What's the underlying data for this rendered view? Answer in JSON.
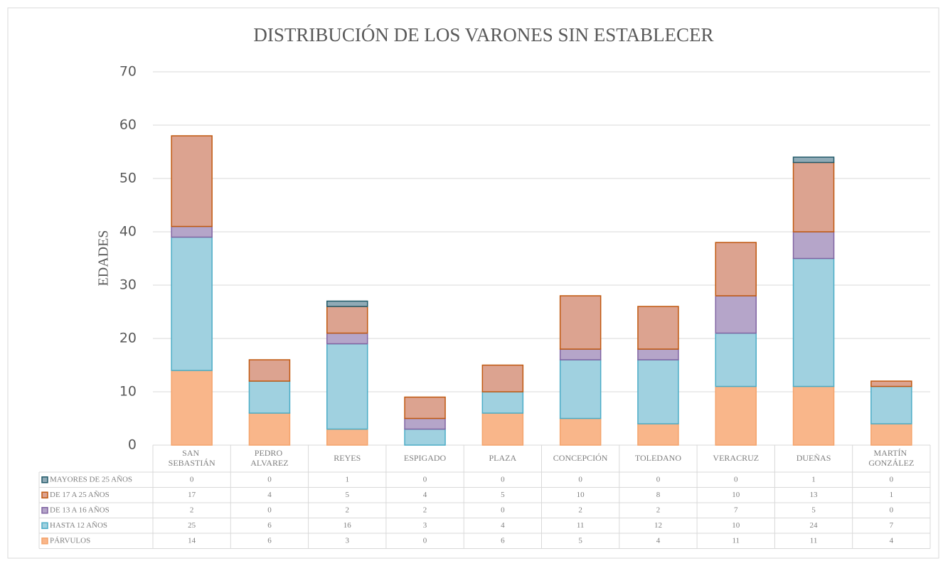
{
  "chart_data": {
    "type": "bar",
    "stacked": true,
    "title": "DISTRIBUCIÓN DE LOS VARONES SIN ESTABLECER",
    "y_label": "EDADES",
    "categories": [
      "SAN SEBASTIÁN",
      "PEDRO ALVAREZ",
      "REYES",
      "ESPIGADO",
      "PLAZA",
      "CONCEPCIÓN",
      "TOLEDANO",
      "VERACRUZ",
      "DUEÑAS",
      "MARTÍN GONZÁLEZ"
    ],
    "series": [
      {
        "name": "PÁRVULOS",
        "color": "#f9b68a",
        "edge": "#f4a46c",
        "values": [
          14,
          6,
          3,
          0,
          6,
          5,
          4,
          11,
          11,
          4
        ]
      },
      {
        "name": "HASTA 12 AÑOS",
        "color": "#a0d1e0",
        "edge": "#4bacc6",
        "values": [
          25,
          6,
          16,
          3,
          4,
          11,
          12,
          10,
          24,
          7
        ]
      },
      {
        "name": "DE 13 A 16 AÑOS",
        "color": "#b5a5c9",
        "edge": "#8064a2",
        "values": [
          2,
          0,
          2,
          2,
          0,
          2,
          2,
          7,
          5,
          0
        ]
      },
      {
        "name": "DE 17 A 25 AÑOS",
        "color": "#dca390",
        "edge": "#c0580f",
        "values": [
          17,
          4,
          5,
          4,
          5,
          10,
          8,
          10,
          13,
          1
        ]
      },
      {
        "name": "MAYORES DE 25 AÑOS",
        "color": "#90aab6",
        "edge": "#215968",
        "values": [
          0,
          0,
          1,
          0,
          0,
          0,
          0,
          0,
          1,
          0
        ]
      }
    ],
    "ylim": [
      0,
      70
    ],
    "yticks": [
      0,
      10,
      20,
      30,
      40,
      50,
      60,
      70
    ],
    "grid": true,
    "data_table": true
  }
}
